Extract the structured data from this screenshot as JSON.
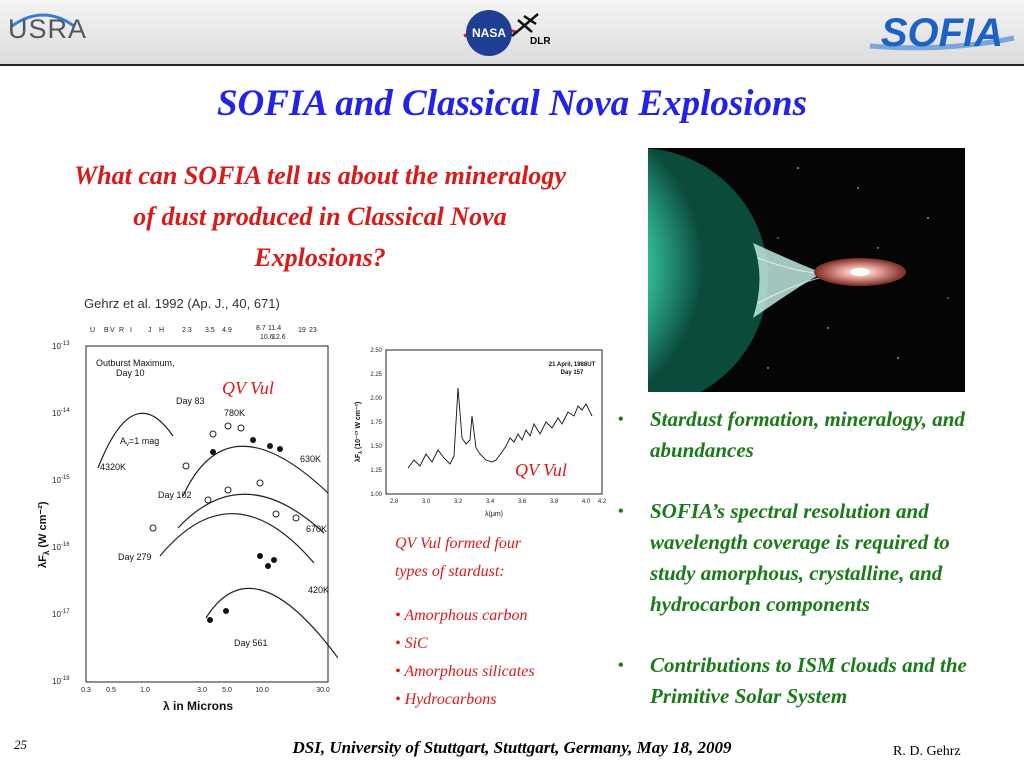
{
  "header": {
    "usra": "USRA",
    "nasa": "NASA",
    "dlr": "DLR",
    "sofia": "SOFIA"
  },
  "title": "SOFIA and Classical Nova Explosions",
  "question": "What can SOFIA tell us about the mineralogy of dust produced in Classical Nova Explosions?",
  "figure_caption": "Gehrz et al. 1992 (Ap. J., 40, 671)",
  "sed_plot": {
    "top_filters": [
      "U",
      "B",
      "V",
      "R",
      "I",
      "J",
      "H",
      "2.3",
      "3.5",
      "4.9",
      "8.7",
      "11.4",
      "10.6",
      "12.6",
      "19",
      "23"
    ],
    "y_ticks": [
      "10",
      "10",
      "10",
      "10",
      "10",
      "10"
    ],
    "y_exponents": [
      "-13",
      "-14",
      "-15",
      "-16",
      "-17",
      "-18"
    ],
    "x_ticks": [
      "0.3",
      "0.5",
      "1.0",
      "3.0",
      "5.0",
      "10.0",
      "30.0"
    ],
    "ylabel": "λF",
    "ylabel_sub": "λ",
    "ylabel_unit": " (W cm⁻²)",
    "xlabel": "λ in Microns",
    "labels": {
      "outburst": "Outburst Maximum,",
      "outburst2": "Day 10",
      "amag": "A",
      "amag_sub": "v",
      "amag_val": "=1 mag",
      "k4320": "4320K",
      "day83": "Day 83",
      "k780": "780K",
      "k630": "630K",
      "day102": "Day 102",
      "k670": "670K",
      "day279": "Day 279",
      "k420": "420K",
      "day561": "Day 561"
    }
  },
  "spectrum_plot": {
    "y_ticks": [
      "2.50",
      "2.25",
      "2.00",
      "1.75",
      "1.50",
      "1.25",
      "1.00"
    ],
    "x_ticks": [
      "2.8",
      "3.0",
      "3.2",
      "3.4",
      "3.6",
      "3.8",
      "4.0",
      "4.2"
    ],
    "ylabel": "λF",
    "ylabel_sub": "λ",
    "ylabel_unit": " (10⁻¹³ W cm⁻²)",
    "xlabel": "λ(μm)",
    "date": "21 April, 1988UT",
    "day": "Day 157"
  },
  "annotations": {
    "qv1": "QV Vul",
    "qv2": "QV Vul",
    "formed1": "QV Vul formed four",
    "formed2": "types of  stardust:",
    "list": [
      "Amorphous carbon",
      "SiC",
      "Amorphous silicates",
      "Hydrocarbons"
    ],
    "list_bullet": "•"
  },
  "bullets": [
    "Stardust formation, mineralogy, and abundances",
    "SOFIA’s spectral resolution and wavelength coverage is required to study amorphous, crystalline, and hydrocarbon components",
    "Contributions to ISM clouds and the Primitive Solar System"
  ],
  "bullet_symbol": "•",
  "footer": "DSI, University of Stuttgart, Stuttgart, Germany, May 18, 2009",
  "slide_number": "25",
  "author": "R.  D. Gehrz"
}
